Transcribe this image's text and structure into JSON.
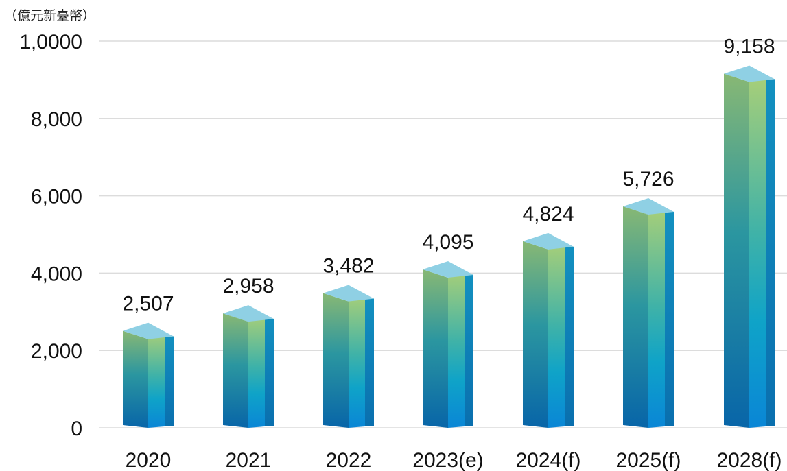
{
  "chart_data": {
    "type": "bar",
    "unit_label": "（億元新臺幣）",
    "categories": [
      "2020",
      "2021",
      "2022",
      "2023(e)",
      "2024(f)",
      "2025(f)",
      "2028(f)"
    ],
    "values": [
      2507,
      2958,
      3482,
      4095,
      4824,
      5726,
      9158
    ],
    "data_labels": [
      "2,507",
      "2,958",
      "3,482",
      "4,095",
      "4,824",
      "5,726",
      "9,158"
    ],
    "yticks": [
      0,
      2000,
      4000,
      6000,
      8000,
      10000
    ],
    "ytick_labels": [
      "0",
      "2,000",
      "4,000",
      "6,000",
      "8,000",
      "1,0000"
    ],
    "ylim": [
      0,
      10000
    ],
    "grid": true,
    "title": "",
    "xlabel": "",
    "ylabel": ""
  }
}
